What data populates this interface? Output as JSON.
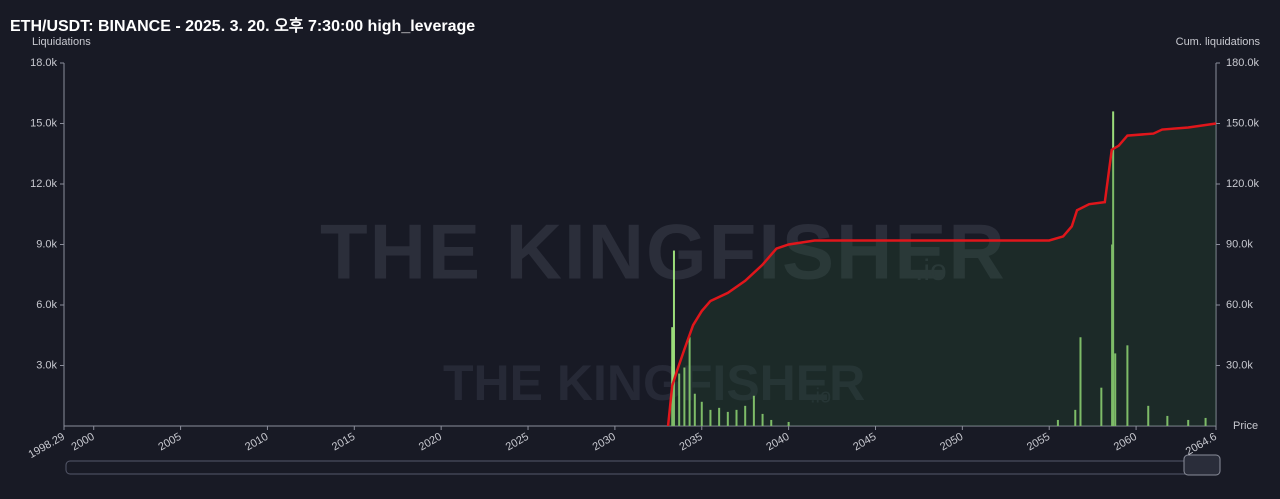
{
  "chart_data": {
    "type": "bar_line",
    "title": "ETH/USDT: BINANCE - 2025. 3. 20. 오후 7:30:00 high_leverage",
    "y_label": "Liquidations",
    "y2_label": "Cum. liquidations",
    "x_label": "Price",
    "watermark": [
      "THE KINGFISHER",
      ".io"
    ],
    "xlim": [
      1998.29,
      2064.6
    ],
    "xticks": [
      1998.29,
      2000,
      2005,
      2010,
      2015,
      2020,
      2025,
      2030,
      2035,
      2040,
      2045,
      2050,
      2055,
      2060,
      2064.6
    ],
    "ylim": [
      0,
      18000
    ],
    "yticks": [
      {
        "value": 3000,
        "label": "3.0k"
      },
      {
        "value": 6000,
        "label": "6.0k"
      },
      {
        "value": 9000,
        "label": "9.0k"
      },
      {
        "value": 12000,
        "label": "12.0k"
      },
      {
        "value": 15000,
        "label": "15.0k"
      },
      {
        "value": 18000,
        "label": "18.0k"
      }
    ],
    "y2lim": [
      0,
      180000
    ],
    "y2ticks": [
      {
        "value": 30000,
        "label": "30.0k"
      },
      {
        "value": 60000,
        "label": "60.0k"
      },
      {
        "value": 90000,
        "label": "90.0k"
      },
      {
        "value": 120000,
        "label": "120.0k"
      },
      {
        "value": 150000,
        "label": "150.0k"
      },
      {
        "value": 180000,
        "label": "180.0k"
      }
    ],
    "series": [
      {
        "name": "Liquidations",
        "type": "bar",
        "color": "#9bdc7a",
        "x": [
          2033.3,
          2033.4,
          2033.7,
          2034.0,
          2034.3,
          2034.6,
          2035.0,
          2035.5,
          2036.0,
          2036.5,
          2037.0,
          2037.5,
          2038.0,
          2038.5,
          2039.0,
          2040.0,
          2055.5,
          2056.5,
          2056.8,
          2058.0,
          2058.62,
          2058.68,
          2058.8,
          2059.5,
          2060.7,
          2061.8,
          2063.0,
          2064.0
        ],
        "values": [
          4900,
          8700,
          2600,
          2900,
          4400,
          1600,
          1200,
          800,
          900,
          700,
          800,
          1000,
          1500,
          600,
          300,
          200,
          300,
          800,
          4400,
          1900,
          9000,
          15600,
          3600,
          4000,
          1000,
          500,
          300,
          400
        ]
      },
      {
        "name": "Cum. liquidations",
        "type": "line",
        "axis": "y2",
        "color": "#e0161b",
        "x": [
          2033.06,
          2033.3,
          2033.6,
          2034.0,
          2034.5,
          2035.0,
          2035.5,
          2036.5,
          2037.5,
          2038.5,
          2039.3,
          2040.0,
          2041.5,
          2055.0,
          2055.8,
          2056.3,
          2056.6,
          2057.3,
          2058.2,
          2058.6,
          2059.0,
          2059.5,
          2061.0,
          2061.5,
          2063.0,
          2064.6
        ],
        "values": [
          0,
          20000,
          28000,
          38000,
          50000,
          57000,
          62000,
          66000,
          72000,
          80000,
          88000,
          90000,
          92000,
          92000,
          94000,
          99000,
          107000,
          110000,
          111000,
          137000,
          139000,
          144000,
          145000,
          147000,
          148000,
          150000
        ]
      }
    ]
  }
}
